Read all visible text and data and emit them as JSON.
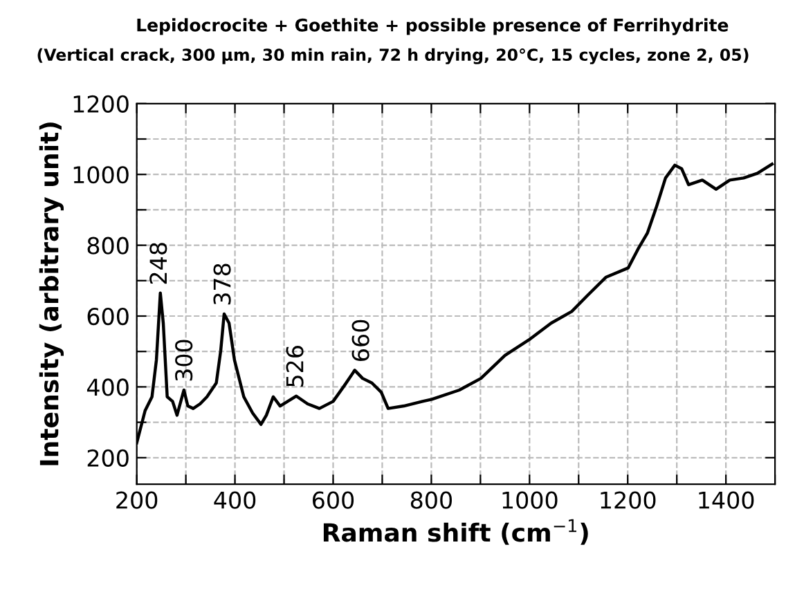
{
  "chart_data": {
    "type": "line",
    "title": "Lepidocrocite + Goethite + possible presence of Ferrihydrite",
    "subtitle": "(Vertical crack, 300 µm, 30 min rain, 72 h drying, 20°C, 15 cycles, zone 2, 05)",
    "xlabel": "Raman shift (cm$^{−1}$)",
    "ylabel": "Intensity (arbitrary unit)",
    "series": [
      {
        "color": "#000000",
        "x": [
          200,
          217,
          231,
          240,
          248,
          254,
          262,
          273,
          282,
          296,
          304,
          315,
          329,
          343,
          362,
          371,
          378,
          388,
          399,
          418,
          436,
          453,
          464,
          478,
          492,
          525,
          548,
          572,
          600,
          623,
          644,
          660,
          679,
          698,
          712,
          744,
          782,
          801,
          857,
          901,
          950,
          1001,
          1044,
          1086,
          1118,
          1156,
          1201,
          1221,
          1240,
          1258,
          1277,
          1296,
          1310,
          1324,
          1352,
          1380,
          1408,
          1436,
          1464,
          1494
        ],
        "values": [
          242,
          333,
          372,
          476,
          665,
          580,
          372,
          359,
          320,
          391,
          346,
          339,
          352,
          372,
          411,
          502,
          606,
          580,
          476,
          372,
          326,
          294,
          320,
          372,
          346,
          374,
          352,
          339,
          359,
          404,
          447,
          424,
          411,
          385,
          339,
          346,
          359,
          365,
          391,
          424,
          489,
          535,
          580,
          613,
          658,
          710,
          736,
          789,
          834,
          906,
          990,
          1026,
          1016,
          971,
          984,
          958,
          984,
          990,
          1003,
          1029
        ]
      }
    ],
    "annotations": [
      {
        "text": "248",
        "x": 248,
        "y": 665
      },
      {
        "text": "300",
        "x": 300,
        "y": 391
      },
      {
        "text": "378",
        "x": 378,
        "y": 606
      },
      {
        "text": "526",
        "x": 526,
        "y": 374
      },
      {
        "text": "660",
        "x": 660,
        "y": 447
      }
    ],
    "xlim": [
      200,
      1500
    ],
    "xticks": [
      200,
      {
        "value": 300,
        "label": null
      },
      400,
      {
        "value": 500,
        "label": null
      },
      600,
      {
        "value": 700,
        "label": null
      },
      800,
      {
        "value": 900,
        "label": null
      },
      1000,
      {
        "value": 1100,
        "label": null
      },
      1200,
      {
        "value": 1300,
        "label": null
      },
      1400,
      {
        "value": 1500,
        "label": null
      }
    ],
    "ylim": [
      125,
      1200
    ],
    "yticks": [
      200,
      {
        "value": 300,
        "label": null
      },
      400,
      {
        "value": 500,
        "label": null
      },
      600,
      {
        "value": 700,
        "label": null
      },
      800,
      {
        "value": 900,
        "label": null
      },
      1000,
      {
        "value": 1100,
        "label": null
      },
      1200
    ],
    "grid": true,
    "marker": "none",
    "line_style": "solid"
  }
}
